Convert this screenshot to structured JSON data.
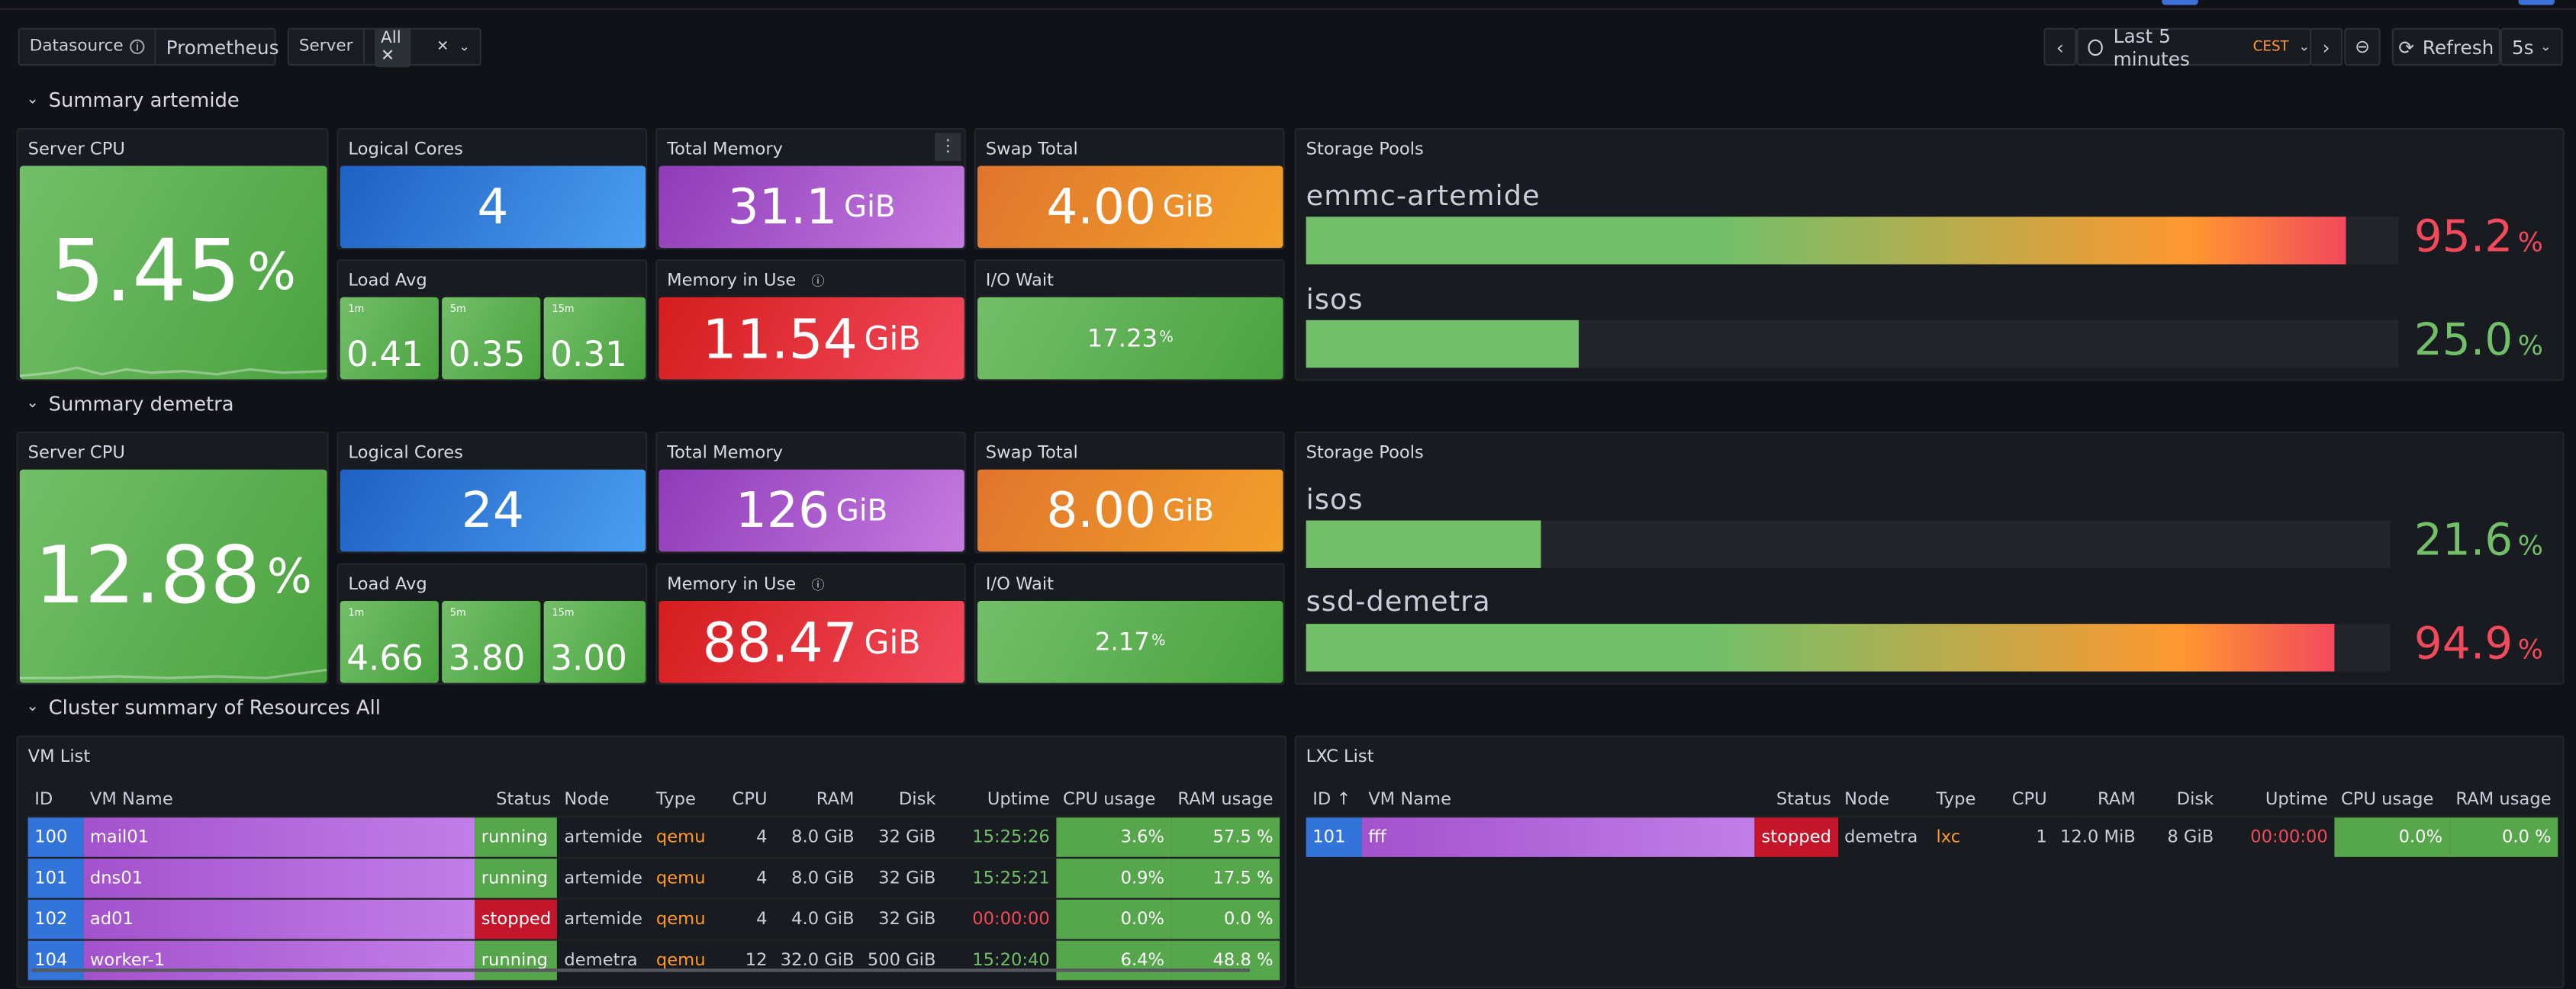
{
  "variables": {
    "datasource_label": "Datasource",
    "datasource_value": "Prometheus",
    "server_label": "Server",
    "server_value": "All"
  },
  "time": {
    "range": "Last 5 minutes",
    "tz": "CEST",
    "refresh_label": "Refresh",
    "refresh_interval": "5s"
  },
  "rows": {
    "artemide": "Summary artemide",
    "demetra": "Summary demetra",
    "cluster": "Cluster summary of Resources All"
  },
  "artemide": {
    "cpu_title": "Server CPU",
    "cpu_value": "5.45",
    "cpu_unit": "%",
    "cores_title": "Logical Cores",
    "cores_value": "4",
    "mem_title": "Total Memory",
    "mem_value": "31.1",
    "mem_unit": "GiB",
    "swap_title": "Swap Total",
    "swap_value": "4.00",
    "swap_unit": "GiB",
    "load_title": "Load Avg",
    "load": [
      {
        "label": "1m",
        "value": "0.41"
      },
      {
        "label": "5m",
        "value": "0.35"
      },
      {
        "label": "15m",
        "value": "0.31"
      }
    ],
    "memuse_title": "Memory in Use",
    "memuse_value": "11.54",
    "memuse_unit": "GiB",
    "iowait_title": "I/O Wait",
    "iowait_value": "17.23",
    "iowait_unit": "%",
    "pools_title": "Storage Pools",
    "pools": [
      {
        "name": "emmc-artemide",
        "value": "95.2",
        "unit": "%",
        "fraction": 0.952
      },
      {
        "name": "isos",
        "value": "25.0",
        "unit": "%",
        "fraction": 0.25
      }
    ]
  },
  "demetra": {
    "cpu_title": "Server CPU",
    "cpu_value": "12.88",
    "cpu_unit": "%",
    "cores_title": "Logical Cores",
    "cores_value": "24",
    "mem_title": "Total Memory",
    "mem_value": "126",
    "mem_unit": "GiB",
    "swap_title": "Swap Total",
    "swap_value": "8.00",
    "swap_unit": "GiB",
    "load_title": "Load Avg",
    "load": [
      {
        "label": "1m",
        "value": "4.66"
      },
      {
        "label": "5m",
        "value": "3.80"
      },
      {
        "label": "15m",
        "value": "3.00"
      }
    ],
    "memuse_title": "Memory in Use",
    "memuse_value": "88.47",
    "memuse_unit": "GiB",
    "iowait_title": "I/O Wait",
    "iowait_value": "2.17",
    "iowait_unit": "%",
    "pools_title": "Storage Pools",
    "pools": [
      {
        "name": "isos",
        "value": "21.6",
        "unit": "%",
        "fraction": 0.216
      },
      {
        "name": "ssd-demetra",
        "value": "94.9",
        "unit": "%",
        "fraction": 0.949
      }
    ]
  },
  "vm_list": {
    "title": "VM List",
    "columns": [
      "ID",
      "VM Name",
      "Status",
      "Node",
      "Type",
      "CPU",
      "RAM",
      "Disk",
      "Uptime",
      "CPU usage",
      "RAM usage"
    ],
    "rows": [
      [
        "100",
        "mail01",
        "running",
        "artemide",
        "qemu",
        "4",
        "8.0 GiB",
        "32 GiB",
        "15:25:26",
        "3.6%",
        "57.5 %"
      ],
      [
        "101",
        "dns01",
        "running",
        "artemide",
        "qemu",
        "4",
        "8.0 GiB",
        "32 GiB",
        "15:25:21",
        "0.9%",
        "17.5 %"
      ],
      [
        "102",
        "ad01",
        "stopped",
        "artemide",
        "qemu",
        "4",
        "4.0 GiB",
        "32 GiB",
        "00:00:00",
        "0.0%",
        "0.0 %"
      ],
      [
        "104",
        "worker-1",
        "running",
        "demetra",
        "qemu",
        "12",
        "32.0 GiB",
        "500 GiB",
        "15:20:40",
        "6.4%",
        "48.8 %"
      ]
    ]
  },
  "lxc_list": {
    "title": "LXC List",
    "columns": [
      "ID ↑",
      "VM Name",
      "Status",
      "Node",
      "Type",
      "CPU",
      "RAM",
      "Disk",
      "Uptime",
      "CPU usage",
      "RAM usage"
    ],
    "rows": [
      [
        "101",
        "fff",
        "stopped",
        "demetra",
        "lxc",
        "1",
        "12.0 MiB",
        "8 GiB",
        "00:00:00",
        "0.0%",
        "0.0 %"
      ]
    ]
  },
  "colors": {
    "green": "#73bf69",
    "red": "#f2495c",
    "orange": "#ff9830",
    "blue": "#3274d9",
    "purple": "#a352cc"
  }
}
